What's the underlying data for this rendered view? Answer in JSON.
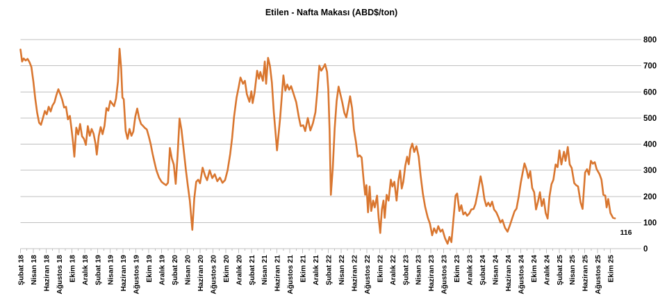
{
  "page": {
    "background_color": "#FFFFFF"
  },
  "chart_data": {
    "type": "line",
    "title": "Etilen - Nafta Makası (ABD$/ton)",
    "series_name": "Etilen - Nafta Makası",
    "unit": "ABD$/ton",
    "line_color": "#D9762F",
    "grid_color": "#BFBFBF",
    "axis_color": "#BFBFBF",
    "label_color": "#000000",
    "grid": "on",
    "legend": "none",
    "y_axis": {
      "side": "right",
      "min": 0,
      "max": 800,
      "step": 100,
      "ticks": [
        0,
        100,
        200,
        300,
        400,
        500,
        600,
        700,
        800
      ]
    },
    "x_axis": {
      "unit": "months_since_Subat_2018",
      "months_per_labeled_tick": 2,
      "minor_tick_every_months": 1
    },
    "x_tick_labels": [
      "Şubat 18",
      "Nisan 18",
      "Haziran 18",
      "Ağustos 18",
      "Ekim 18",
      "Aralık 18",
      "Şubat 19",
      "Nisan 19",
      "Haziran 19",
      "Ağustos 19",
      "Ekim 19",
      "Aralık 19",
      "Şubat 20",
      "Nisan 20",
      "Haziran 20",
      "Ağustos 20",
      "Ekim 20",
      "Aralık 20",
      "Şubat 21",
      "Nisan 21",
      "Haziran 21",
      "Ağustos 21",
      "Ekim 21",
      "Aralık 21",
      "Şubat 22",
      "Nisan 22",
      "Haziran 22",
      "Ağustos 22",
      "Ekim 22",
      "Aralık 22",
      "Şubat 23",
      "Nisan 23",
      "Haziran 23",
      "Ağustos 23",
      "Ekim 23",
      "Aralık 23",
      "Şubat 24",
      "Nisan 24",
      "Haziran 24",
      "Ağustos 24",
      "Ekim 24",
      "Aralık 24",
      "Şubat 25",
      "Nisan 25",
      "Haziran 25",
      "Ağustos 25",
      "Ekim 25"
    ],
    "end_label": {
      "text": "116",
      "value": 116
    },
    "points": [
      [
        0,
        762
      ],
      [
        0.25,
        716
      ],
      [
        0.5,
        728
      ],
      [
        0.8,
        720
      ],
      [
        1.1,
        726
      ],
      [
        1.4,
        714
      ],
      [
        1.7,
        695
      ],
      [
        2,
        640
      ],
      [
        2.3,
        575
      ],
      [
        2.6,
        520
      ],
      [
        2.9,
        482
      ],
      [
        3.2,
        474
      ],
      [
        3.5,
        500
      ],
      [
        3.8,
        527
      ],
      [
        4.1,
        514
      ],
      [
        4.4,
        543
      ],
      [
        4.7,
        525
      ],
      [
        5,
        548
      ],
      [
        5.3,
        560
      ],
      [
        5.6,
        588
      ],
      [
        5.9,
        610
      ],
      [
        6.2,
        592
      ],
      [
        6.5,
        570
      ],
      [
        6.8,
        540
      ],
      [
        7.1,
        543
      ],
      [
        7.4,
        495
      ],
      [
        7.7,
        508
      ],
      [
        8,
        450
      ],
      [
        8.2,
        405
      ],
      [
        8.4,
        352
      ],
      [
        8.7,
        463
      ],
      [
        9,
        437
      ],
      [
        9.3,
        477
      ],
      [
        9.6,
        430
      ],
      [
        9.9,
        420
      ],
      [
        10.2,
        397
      ],
      [
        10.5,
        469
      ],
      [
        10.8,
        432
      ],
      [
        11.1,
        458
      ],
      [
        11.4,
        440
      ],
      [
        11.7,
        402
      ],
      [
        11.9,
        360
      ],
      [
        12.2,
        430
      ],
      [
        12.5,
        465
      ],
      [
        12.8,
        438
      ],
      [
        13.1,
        470
      ],
      [
        13.4,
        538
      ],
      [
        13.7,
        528
      ],
      [
        14,
        565
      ],
      [
        14.3,
        555
      ],
      [
        14.6,
        545
      ],
      [
        14.9,
        575
      ],
      [
        15.2,
        640
      ],
      [
        15.45,
        765
      ],
      [
        15.7,
        690
      ],
      [
        15.9,
        578
      ],
      [
        16.1,
        572
      ],
      [
        16.4,
        450
      ],
      [
        16.7,
        420
      ],
      [
        17,
        458
      ],
      [
        17.3,
        432
      ],
      [
        17.6,
        448
      ],
      [
        17.9,
        505
      ],
      [
        18.2,
        536
      ],
      [
        18.5,
        500
      ],
      [
        18.8,
        477
      ],
      [
        19.1,
        470
      ],
      [
        19.4,
        462
      ],
      [
        19.7,
        456
      ],
      [
        20,
        430
      ],
      [
        20.3,
        400
      ],
      [
        20.6,
        363
      ],
      [
        20.9,
        330
      ],
      [
        21.2,
        299
      ],
      [
        21.6,
        272
      ],
      [
        22,
        256
      ],
      [
        22.4,
        248
      ],
      [
        22.7,
        243
      ],
      [
        23,
        252
      ],
      [
        23.3,
        385
      ],
      [
        23.6,
        345
      ],
      [
        23.9,
        322
      ],
      [
        24.2,
        248
      ],
      [
        24.5,
        357
      ],
      [
        24.8,
        498
      ],
      [
        25.1,
        455
      ],
      [
        25.4,
        390
      ],
      [
        25.8,
        300
      ],
      [
        26.1,
        240
      ],
      [
        26.4,
        184
      ],
      [
        26.8,
        72
      ],
      [
        27.1,
        192
      ],
      [
        27.4,
        256
      ],
      [
        27.7,
        264
      ],
      [
        28,
        250
      ],
      [
        28.4,
        310
      ],
      [
        28.8,
        278
      ],
      [
        29.1,
        262
      ],
      [
        29.5,
        300
      ],
      [
        29.9,
        270
      ],
      [
        30.3,
        285
      ],
      [
        30.7,
        258
      ],
      [
        31.1,
        272
      ],
      [
        31.5,
        252
      ],
      [
        31.9,
        262
      ],
      [
        32.3,
        300
      ],
      [
        32.7,
        362
      ],
      [
        33,
        424
      ],
      [
        33.3,
        503
      ],
      [
        33.7,
        578
      ],
      [
        34,
        615
      ],
      [
        34.3,
        655
      ],
      [
        34.7,
        631
      ],
      [
        35,
        642
      ],
      [
        35.3,
        591
      ],
      [
        35.7,
        562
      ],
      [
        36,
        602
      ],
      [
        36.2,
        557
      ],
      [
        36.5,
        597
      ],
      [
        36.9,
        681
      ],
      [
        37.2,
        650
      ],
      [
        37.4,
        676
      ],
      [
        37.8,
        642
      ],
      [
        38.1,
        716
      ],
      [
        38.3,
        631
      ],
      [
        38.6,
        730
      ],
      [
        38.9,
        700
      ],
      [
        39.2,
        636
      ],
      [
        39.5,
        522
      ],
      [
        40,
        376
      ],
      [
        40.5,
        503
      ],
      [
        41,
        663
      ],
      [
        41.3,
        605
      ],
      [
        41.6,
        628
      ],
      [
        41.9,
        608
      ],
      [
        42.2,
        622
      ],
      [
        42.6,
        591
      ],
      [
        43,
        560
      ],
      [
        43.4,
        503
      ],
      [
        43.7,
        469
      ],
      [
        44.1,
        472
      ],
      [
        44.4,
        450
      ],
      [
        44.8,
        500
      ],
      [
        45.2,
        452
      ],
      [
        45.6,
        480
      ],
      [
        46,
        522
      ],
      [
        46.3,
        605
      ],
      [
        46.6,
        700
      ],
      [
        46.9,
        681
      ],
      [
        47.2,
        692
      ],
      [
        47.5,
        706
      ],
      [
        47.8,
        677
      ],
      [
        48,
        610
      ],
      [
        48.2,
        450
      ],
      [
        48.4,
        206
      ],
      [
        48.7,
        310
      ],
      [
        49,
        460
      ],
      [
        49.3,
        565
      ],
      [
        49.6,
        620
      ],
      [
        49.9,
        590
      ],
      [
        50.2,
        558
      ],
      [
        50.5,
        520
      ],
      [
        50.8,
        502
      ],
      [
        51.1,
        540
      ],
      [
        51.4,
        583
      ],
      [
        51.7,
        538
      ],
      [
        52,
        455
      ],
      [
        52.3,
        410
      ],
      [
        52.6,
        352
      ],
      [
        52.9,
        357
      ],
      [
        53.2,
        349
      ],
      [
        53.5,
        264
      ],
      [
        53.75,
        206
      ],
      [
        53.95,
        243
      ],
      [
        54.2,
        139
      ],
      [
        54.45,
        238
      ],
      [
        54.7,
        144
      ],
      [
        55,
        184
      ],
      [
        55.25,
        158
      ],
      [
        55.6,
        203
      ],
      [
        55.85,
        118
      ],
      [
        56.1,
        60
      ],
      [
        56.35,
        150
      ],
      [
        56.6,
        184
      ],
      [
        56.8,
        118
      ],
      [
        57.1,
        206
      ],
      [
        57.4,
        184
      ],
      [
        57.75,
        264
      ],
      [
        58,
        238
      ],
      [
        58.3,
        256
      ],
      [
        58.65,
        184
      ],
      [
        58.95,
        264
      ],
      [
        59.2,
        299
      ],
      [
        59.45,
        230
      ],
      [
        59.7,
        256
      ],
      [
        60,
        317
      ],
      [
        60.3,
        352
      ],
      [
        60.55,
        323
      ],
      [
        60.8,
        379
      ],
      [
        61.1,
        402
      ],
      [
        61.4,
        370
      ],
      [
        61.75,
        392
      ],
      [
        62.1,
        352
      ],
      [
        62.4,
        280
      ],
      [
        62.75,
        211
      ],
      [
        63.1,
        160
      ],
      [
        63.5,
        120
      ],
      [
        63.85,
        96
      ],
      [
        64.2,
        51
      ],
      [
        64.5,
        78
      ],
      [
        64.85,
        60
      ],
      [
        65.15,
        86
      ],
      [
        65.5,
        65
      ],
      [
        65.8,
        73
      ],
      [
        66.2,
        40
      ],
      [
        66.6,
        19
      ],
      [
        66.9,
        45
      ],
      [
        67.2,
        25
      ],
      [
        67.55,
        120
      ],
      [
        67.85,
        203
      ],
      [
        68.1,
        211
      ],
      [
        68.45,
        144
      ],
      [
        68.75,
        166
      ],
      [
        69.05,
        131
      ],
      [
        69.35,
        139
      ],
      [
        69.65,
        126
      ],
      [
        70,
        135
      ],
      [
        70.3,
        150
      ],
      [
        70.65,
        152
      ],
      [
        70.95,
        171
      ],
      [
        71.35,
        220
      ],
      [
        71.75,
        277
      ],
      [
        72.05,
        240
      ],
      [
        72.35,
        190
      ],
      [
        72.65,
        163
      ],
      [
        72.95,
        176
      ],
      [
        73.25,
        162
      ],
      [
        73.55,
        180
      ],
      [
        73.85,
        150
      ],
      [
        74.2,
        139
      ],
      [
        74.55,
        120
      ],
      [
        74.85,
        100
      ],
      [
        75.15,
        110
      ],
      [
        75.55,
        80
      ],
      [
        75.95,
        65
      ],
      [
        76.35,
        92
      ],
      [
        76.75,
        122
      ],
      [
        77.05,
        143
      ],
      [
        77.35,
        153
      ],
      [
        77.7,
        200
      ],
      [
        78,
        250
      ],
      [
        78.3,
        290
      ],
      [
        78.6,
        326
      ],
      [
        78.9,
        304
      ],
      [
        79.2,
        270
      ],
      [
        79.5,
        296
      ],
      [
        79.8,
        232
      ],
      [
        80.1,
        216
      ],
      [
        80.4,
        150
      ],
      [
        80.7,
        180
      ],
      [
        81,
        216
      ],
      [
        81.3,
        163
      ],
      [
        81.6,
        190
      ],
      [
        81.9,
        136
      ],
      [
        82.2,
        115
      ],
      [
        82.5,
        200
      ],
      [
        82.8,
        246
      ],
      [
        83.1,
        264
      ],
      [
        83.45,
        322
      ],
      [
        83.75,
        312
      ],
      [
        84.05,
        376
      ],
      [
        84.35,
        322
      ],
      [
        84.75,
        371
      ],
      [
        85,
        336
      ],
      [
        85.35,
        389
      ],
      [
        85.65,
        322
      ],
      [
        85.95,
        309
      ],
      [
        86.35,
        251
      ],
      [
        86.65,
        243
      ],
      [
        86.95,
        238
      ],
      [
        87.35,
        176
      ],
      [
        87.65,
        152
      ],
      [
        88.05,
        291
      ],
      [
        88.35,
        304
      ],
      [
        88.65,
        283
      ],
      [
        88.95,
        336
      ],
      [
        89.25,
        325
      ],
      [
        89.55,
        331
      ],
      [
        89.85,
        304
      ],
      [
        90.3,
        285
      ],
      [
        90.6,
        264
      ],
      [
        90.9,
        206
      ],
      [
        91.2,
        203
      ],
      [
        91.4,
        158
      ],
      [
        91.65,
        190
      ],
      [
        92,
        136
      ],
      [
        92.4,
        118
      ],
      [
        92.7,
        116
      ]
    ]
  }
}
